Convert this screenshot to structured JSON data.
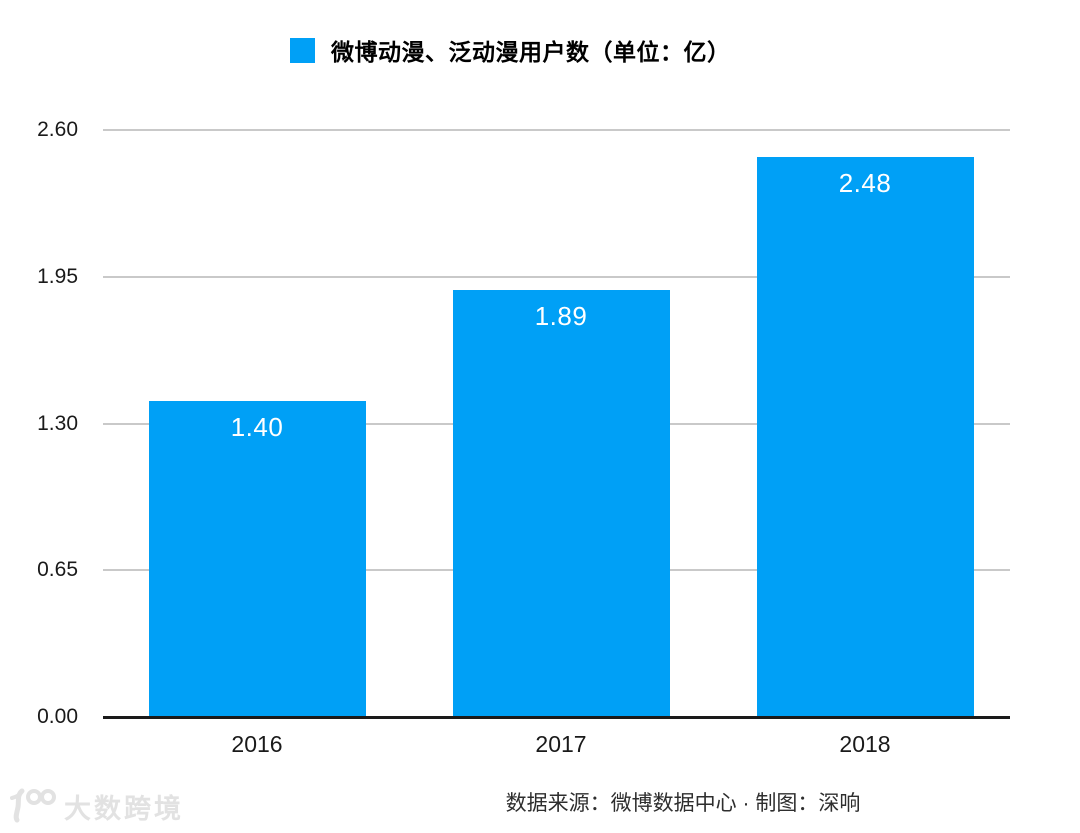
{
  "colors": {
    "bar": "#00a0f6",
    "grid": "#c9c9c9",
    "axis": "#1a1a1a",
    "bar_label": "#ffffff",
    "watermark": "#e2e2e2"
  },
  "legend": {
    "label": "微博动漫、泛动漫用户数（单位：亿）"
  },
  "chart_data": {
    "type": "bar",
    "title": "微博动漫、泛动漫用户数（单位：亿）",
    "categories": [
      "2016",
      "2017",
      "2018"
    ],
    "values": [
      1.4,
      1.89,
      2.48
    ],
    "value_labels": [
      "1.40",
      "1.89",
      "2.48"
    ],
    "xlabel": "",
    "ylabel": "",
    "ylim": [
      0,
      2.6
    ],
    "yticks": [
      "0.00",
      "0.65",
      "1.30",
      "1.95",
      "2.60"
    ],
    "grid": true,
    "legend_position": "top",
    "bar_color": "#00a0f6"
  },
  "footer": {
    "source": "数据来源：微博数据中心 · 制图：深响"
  },
  "watermark": {
    "text": "大数跨境",
    "logo": "100-swoosh-logo"
  }
}
